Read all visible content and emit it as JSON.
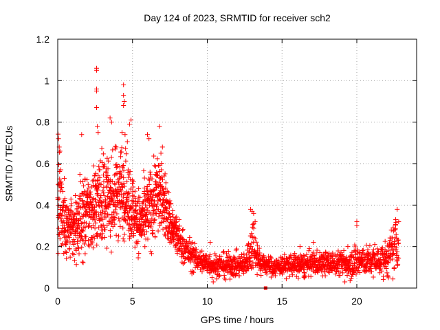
{
  "chart_data": {
    "type": "scatter",
    "title": "Day 124 of 2023, SRMTID for receiver sch2",
    "xlabel": "GPS time / hours",
    "ylabel": "SRMTID / TECUs",
    "xlim": [
      0,
      24
    ],
    "ylim": [
      0,
      1.2
    ],
    "x_ticks": [
      0,
      5,
      10,
      15,
      20
    ],
    "x_tick_labels": [
      "0",
      "5",
      "10",
      "15",
      "20"
    ],
    "y_ticks": [
      0,
      0.2,
      0.4,
      0.6,
      0.8,
      1.0,
      1.2
    ],
    "y_tick_labels": [
      "0",
      "0.2",
      "0.4",
      "0.6",
      "0.8",
      "1",
      "1.2"
    ],
    "grid": true,
    "marker": "plus",
    "color": "#ff0000",
    "outlier_square": {
      "x": 13.9,
      "y": 0.0
    },
    "series": [
      {
        "name": "sch2",
        "envelope_x": [
          0,
          0.25,
          0.5,
          0.75,
          1,
          1.25,
          1.5,
          1.75,
          2,
          2.25,
          2.5,
          2.75,
          3,
          3.25,
          3.5,
          3.75,
          4,
          4.25,
          4.5,
          4.75,
          5,
          5.25,
          5.5,
          5.75,
          6,
          6.25,
          6.5,
          6.75,
          7,
          7.25,
          7.5,
          7.75,
          8,
          8.5,
          9,
          9.5,
          10,
          10.5,
          11,
          11.5,
          12,
          12.5,
          12.9,
          13.1,
          13.3,
          13.6,
          14,
          14.5,
          15,
          15.5,
          16,
          16.5,
          17,
          17.5,
          18,
          18.5,
          19,
          19.5,
          20,
          20.5,
          21,
          21.5,
          22,
          22.4,
          22.6,
          22.8
        ],
        "envelope_mid": [
          0.42,
          0.38,
          0.32,
          0.28,
          0.27,
          0.3,
          0.33,
          0.35,
          0.36,
          0.38,
          0.4,
          0.42,
          0.44,
          0.43,
          0.42,
          0.44,
          0.47,
          0.48,
          0.46,
          0.42,
          0.38,
          0.34,
          0.32,
          0.33,
          0.36,
          0.4,
          0.44,
          0.46,
          0.44,
          0.38,
          0.32,
          0.28,
          0.24,
          0.19,
          0.15,
          0.13,
          0.12,
          0.11,
          0.11,
          0.11,
          0.11,
          0.11,
          0.18,
          0.24,
          0.16,
          0.12,
          0.11,
          0.1,
          0.11,
          0.11,
          0.11,
          0.11,
          0.12,
          0.12,
          0.12,
          0.12,
          0.12,
          0.12,
          0.13,
          0.13,
          0.13,
          0.13,
          0.14,
          0.18,
          0.22,
          0.18
        ],
        "envelope_spread": [
          0.22,
          0.2,
          0.14,
          0.12,
          0.13,
          0.15,
          0.16,
          0.17,
          0.17,
          0.18,
          0.2,
          0.2,
          0.2,
          0.18,
          0.16,
          0.18,
          0.2,
          0.2,
          0.18,
          0.16,
          0.15,
          0.14,
          0.13,
          0.14,
          0.16,
          0.17,
          0.18,
          0.17,
          0.15,
          0.13,
          0.11,
          0.1,
          0.09,
          0.07,
          0.06,
          0.05,
          0.05,
          0.05,
          0.05,
          0.05,
          0.05,
          0.05,
          0.09,
          0.12,
          0.07,
          0.05,
          0.04,
          0.04,
          0.04,
          0.05,
          0.05,
          0.05,
          0.05,
          0.05,
          0.05,
          0.05,
          0.05,
          0.06,
          0.08,
          0.06,
          0.06,
          0.06,
          0.08,
          0.1,
          0.12,
          0.08
        ],
        "peaks": [
          {
            "x": 2.6,
            "y": 1.06
          },
          {
            "x": 2.6,
            "y": 1.05
          },
          {
            "x": 2.6,
            "y": 0.96
          },
          {
            "x": 2.6,
            "y": 0.95
          },
          {
            "x": 2.6,
            "y": 0.87
          },
          {
            "x": 2.65,
            "y": 0.78
          },
          {
            "x": 2.7,
            "y": 0.75
          },
          {
            "x": 4.4,
            "y": 0.98
          },
          {
            "x": 4.4,
            "y": 0.93
          },
          {
            "x": 4.45,
            "y": 0.9
          },
          {
            "x": 4.4,
            "y": 0.88
          },
          {
            "x": 3.5,
            "y": 0.82
          },
          {
            "x": 3.6,
            "y": 0.8
          },
          {
            "x": 4.9,
            "y": 0.81
          },
          {
            "x": 4.8,
            "y": 0.79
          },
          {
            "x": 4.3,
            "y": 0.75
          },
          {
            "x": 4.5,
            "y": 0.74
          },
          {
            "x": 6.8,
            "y": 0.78
          },
          {
            "x": 6.0,
            "y": 0.74
          },
          {
            "x": 6.1,
            "y": 0.72
          },
          {
            "x": 1.6,
            "y": 0.74
          },
          {
            "x": 0.05,
            "y": 0.72
          },
          {
            "x": 0.1,
            "y": 0.68
          },
          {
            "x": 0.15,
            "y": 0.66
          },
          {
            "x": 7.0,
            "y": 0.68
          },
          {
            "x": 12.9,
            "y": 0.38
          },
          {
            "x": 13.0,
            "y": 0.37
          },
          {
            "x": 13.1,
            "y": 0.36
          },
          {
            "x": 13.2,
            "y": 0.32
          },
          {
            "x": 22.7,
            "y": 0.38
          },
          {
            "x": 22.6,
            "y": 0.33
          },
          {
            "x": 22.8,
            "y": 0.32
          },
          {
            "x": 20.0,
            "y": 0.32
          },
          {
            "x": 20.0,
            "y": 0.3
          },
          {
            "x": 9.0,
            "y": 0.22
          },
          {
            "x": 10.2,
            "y": 0.22
          },
          {
            "x": 16.2,
            "y": 0.2
          },
          {
            "x": 17.1,
            "y": 0.22
          },
          {
            "x": 21.2,
            "y": 0.21
          },
          {
            "x": 19.4,
            "y": 0.2
          },
          {
            "x": 10.4,
            "y": 0.03
          },
          {
            "x": 11.2,
            "y": 0.04
          },
          {
            "x": 16.5,
            "y": 0.05
          },
          {
            "x": 19.2,
            "y": 0.03
          }
        ]
      }
    ]
  }
}
